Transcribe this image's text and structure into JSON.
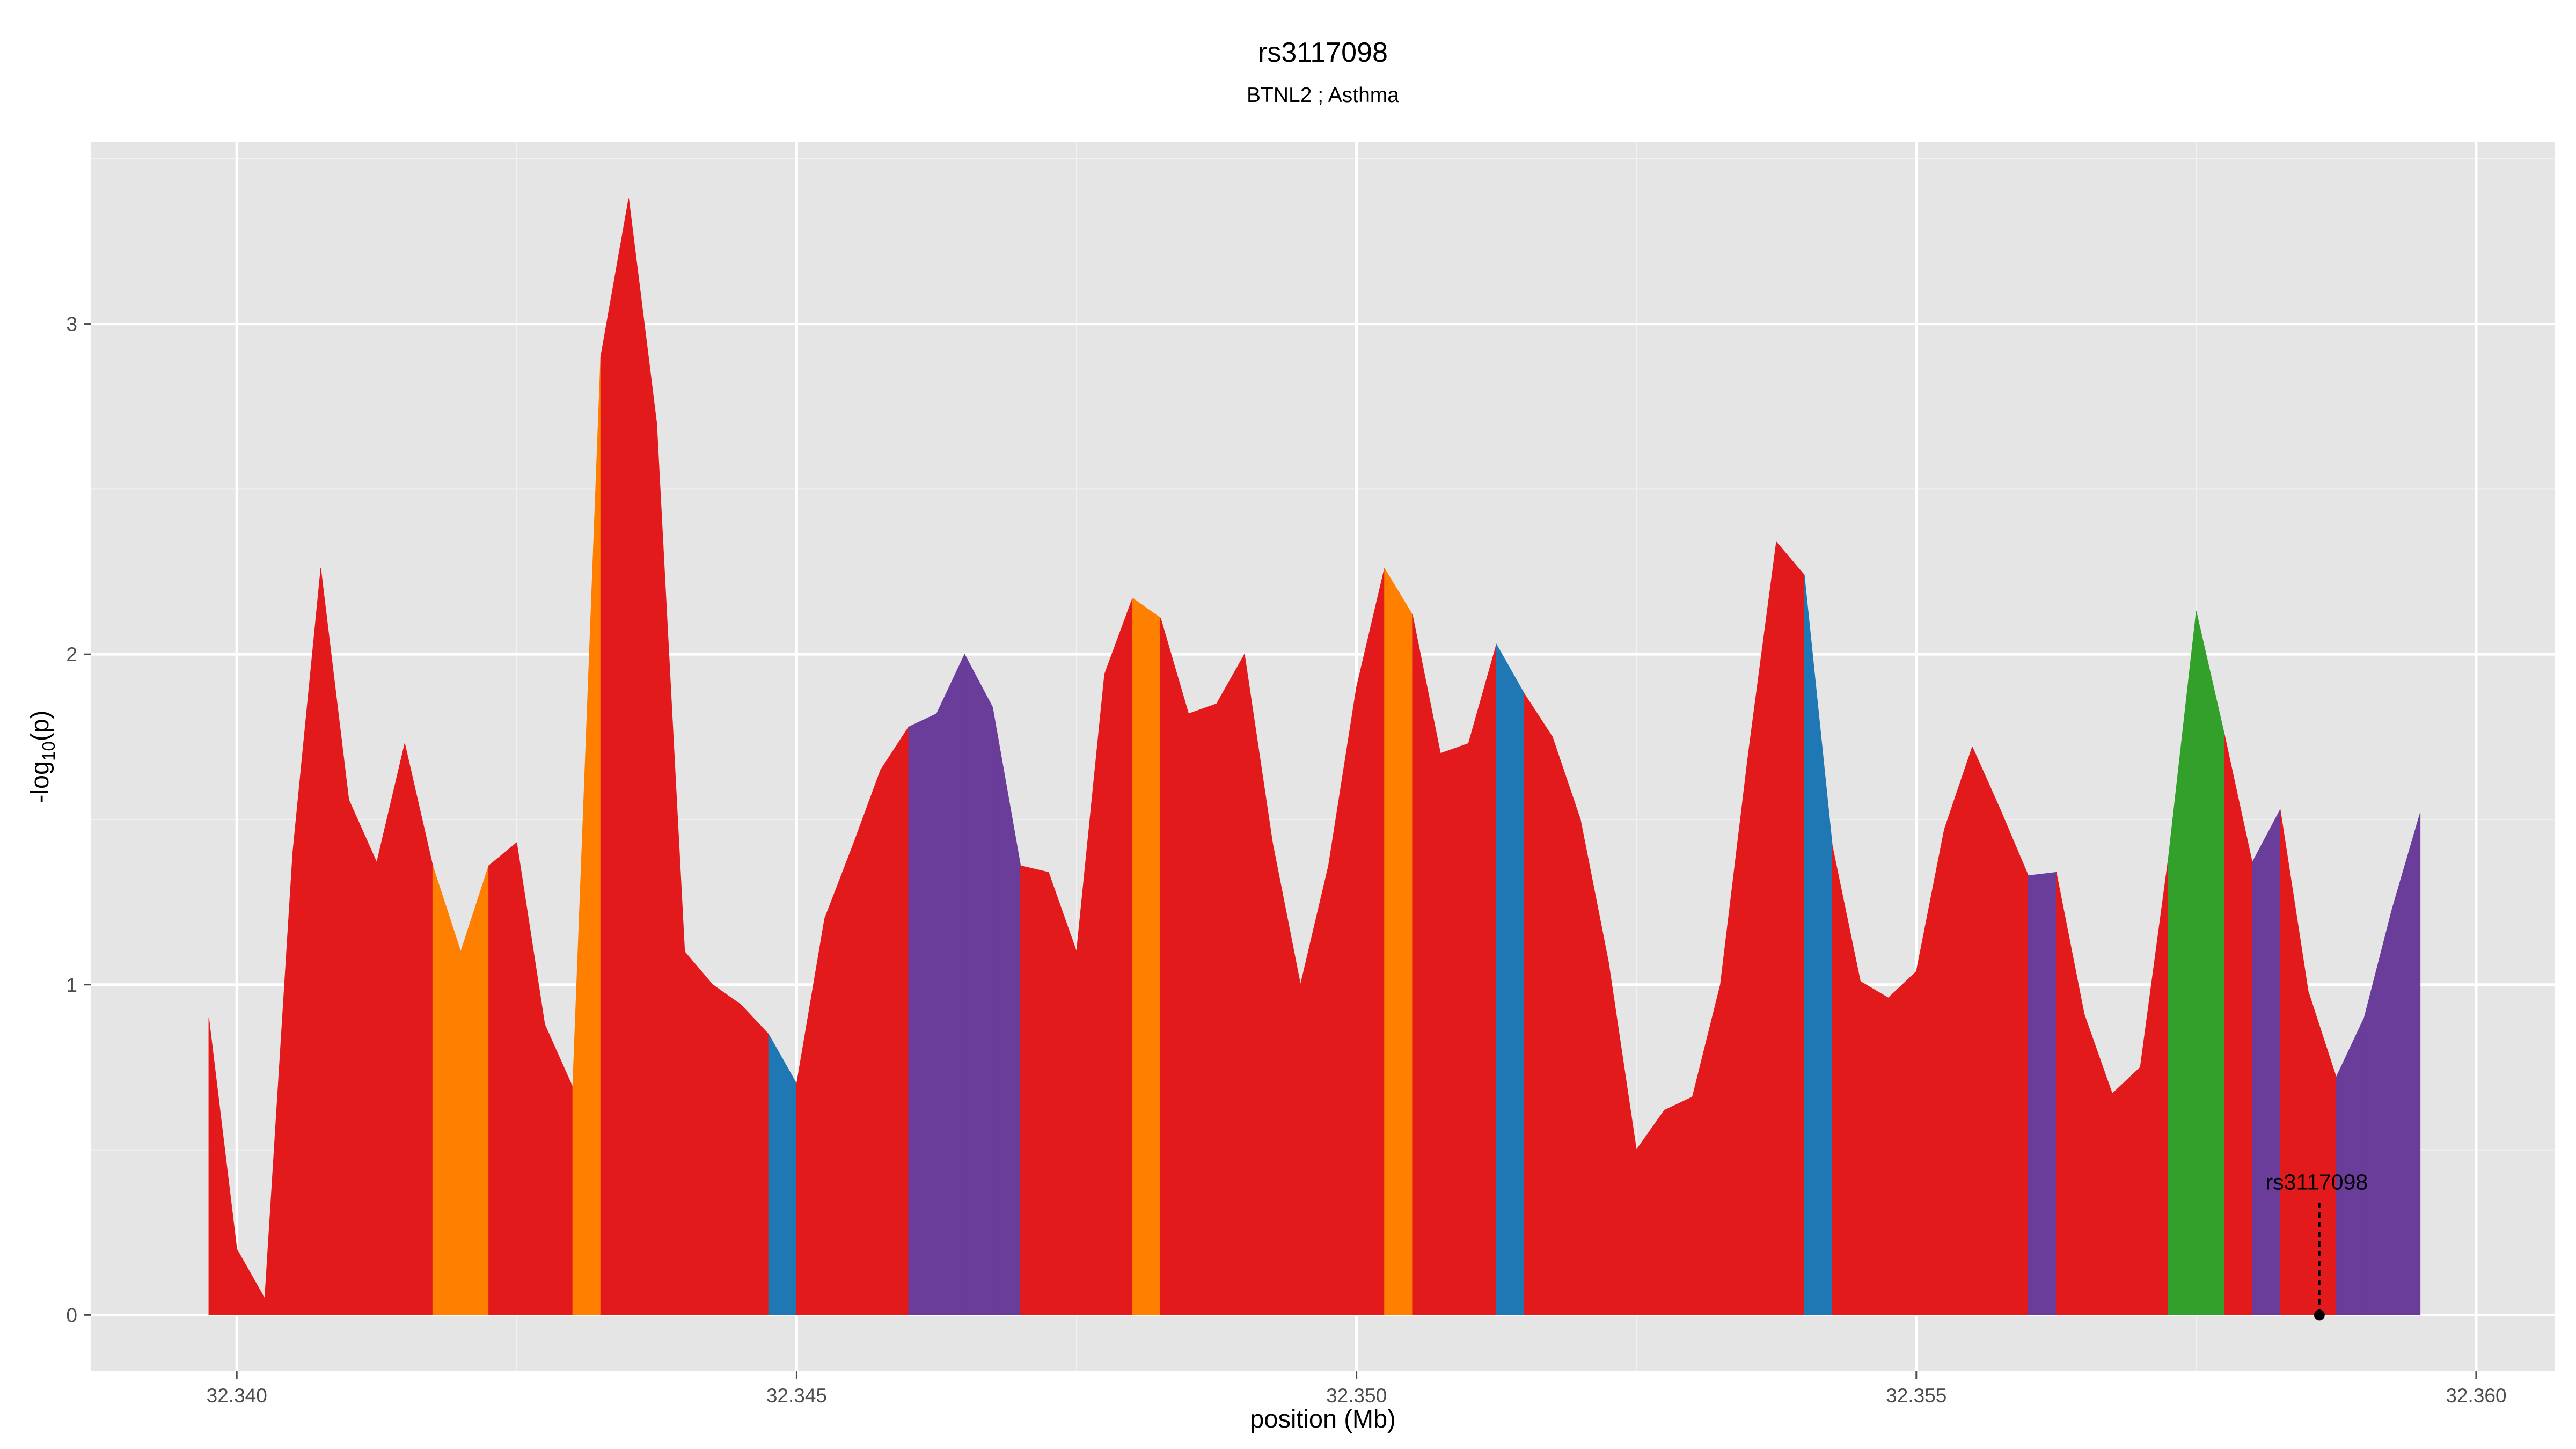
{
  "chart_data": {
    "type": "area",
    "title": "rs3117098",
    "subtitle": "BTNL2 ; Asthma",
    "xlabel": "position (Mb)",
    "ylabel_prefix": "-log",
    "ylabel_sub": "10",
    "ylabel_suffix": "(p)",
    "xlim": [
      32.3387,
      32.3607
    ],
    "ylim": [
      -0.17,
      3.55
    ],
    "x_ticks": [
      32.34,
      32.345,
      32.35,
      32.355,
      32.36
    ],
    "x_tick_labels": [
      "32.340",
      "32.345",
      "32.350",
      "32.355",
      "32.360"
    ],
    "y_ticks": [
      0,
      1,
      2,
      3
    ],
    "y_tick_labels": [
      "0",
      "1",
      "2",
      "3"
    ],
    "grid": true,
    "background": "#e5e5e5",
    "colors": {
      "red": "#e31a1c",
      "orange": "#ff7f00",
      "blue": "#1f78b4",
      "purple": "#6a3d9a",
      "green": "#33a02c"
    },
    "points": [
      {
        "x": 32.33975,
        "y": 0.9,
        "c": "red"
      },
      {
        "x": 32.34,
        "y": 0.2,
        "c": "red"
      },
      {
        "x": 32.34025,
        "y": 0.05,
        "c": "red"
      },
      {
        "x": 32.3405,
        "y": 1.4,
        "c": "red"
      },
      {
        "x": 32.34075,
        "y": 2.26,
        "c": "red"
      },
      {
        "x": 32.341,
        "y": 1.56,
        "c": "red"
      },
      {
        "x": 32.34125,
        "y": 1.37,
        "c": "red"
      },
      {
        "x": 32.3415,
        "y": 1.73,
        "c": "red"
      },
      {
        "x": 32.34175,
        "y": 1.36,
        "c": "orange"
      },
      {
        "x": 32.342,
        "y": 1.1,
        "c": "orange"
      },
      {
        "x": 32.34225,
        "y": 1.36,
        "c": "red"
      },
      {
        "x": 32.3425,
        "y": 1.43,
        "c": "red"
      },
      {
        "x": 32.34275,
        "y": 0.88,
        "c": "red"
      },
      {
        "x": 32.343,
        "y": 0.69,
        "c": "orange"
      },
      {
        "x": 32.34325,
        "y": 2.9,
        "c": "red"
      },
      {
        "x": 32.3435,
        "y": 3.38,
        "c": "red"
      },
      {
        "x": 32.34375,
        "y": 2.7,
        "c": "red"
      },
      {
        "x": 32.344,
        "y": 1.1,
        "c": "red"
      },
      {
        "x": 32.34425,
        "y": 1.0,
        "c": "red"
      },
      {
        "x": 32.3445,
        "y": 0.94,
        "c": "red"
      },
      {
        "x": 32.34475,
        "y": 0.85,
        "c": "blue"
      },
      {
        "x": 32.345,
        "y": 0.7,
        "c": "red"
      },
      {
        "x": 32.34525,
        "y": 1.2,
        "c": "red"
      },
      {
        "x": 32.3455,
        "y": 1.42,
        "c": "red"
      },
      {
        "x": 32.34575,
        "y": 1.65,
        "c": "red"
      },
      {
        "x": 32.346,
        "y": 1.78,
        "c": "purple"
      },
      {
        "x": 32.34625,
        "y": 1.82,
        "c": "purple"
      },
      {
        "x": 32.3465,
        "y": 2.0,
        "c": "purple"
      },
      {
        "x": 32.34675,
        "y": 1.84,
        "c": "purple"
      },
      {
        "x": 32.347,
        "y": 1.36,
        "c": "red"
      },
      {
        "x": 32.34725,
        "y": 1.34,
        "c": "red"
      },
      {
        "x": 32.3475,
        "y": 1.1,
        "c": "red"
      },
      {
        "x": 32.34775,
        "y": 1.94,
        "c": "red"
      },
      {
        "x": 32.348,
        "y": 2.17,
        "c": "orange"
      },
      {
        "x": 32.34825,
        "y": 2.11,
        "c": "red"
      },
      {
        "x": 32.3485,
        "y": 1.82,
        "c": "red"
      },
      {
        "x": 32.34875,
        "y": 1.85,
        "c": "red"
      },
      {
        "x": 32.349,
        "y": 2.0,
        "c": "red"
      },
      {
        "x": 32.34925,
        "y": 1.43,
        "c": "red"
      },
      {
        "x": 32.3495,
        "y": 1.0,
        "c": "red"
      },
      {
        "x": 32.34975,
        "y": 1.36,
        "c": "red"
      },
      {
        "x": 32.35,
        "y": 1.9,
        "c": "red"
      },
      {
        "x": 32.35025,
        "y": 2.26,
        "c": "orange"
      },
      {
        "x": 32.3505,
        "y": 2.12,
        "c": "red"
      },
      {
        "x": 32.35075,
        "y": 1.7,
        "c": "red"
      },
      {
        "x": 32.351,
        "y": 1.73,
        "c": "red"
      },
      {
        "x": 32.35125,
        "y": 2.03,
        "c": "blue"
      },
      {
        "x": 32.3515,
        "y": 1.88,
        "c": "red"
      },
      {
        "x": 32.35175,
        "y": 1.75,
        "c": "red"
      },
      {
        "x": 32.352,
        "y": 1.5,
        "c": "red"
      },
      {
        "x": 32.35225,
        "y": 1.07,
        "c": "red"
      },
      {
        "x": 32.3525,
        "y": 0.5,
        "c": "red"
      },
      {
        "x": 32.35275,
        "y": 0.62,
        "c": "red"
      },
      {
        "x": 32.353,
        "y": 0.66,
        "c": "red"
      },
      {
        "x": 32.35325,
        "y": 1.0,
        "c": "red"
      },
      {
        "x": 32.3535,
        "y": 1.7,
        "c": "red"
      },
      {
        "x": 32.35375,
        "y": 2.34,
        "c": "red"
      },
      {
        "x": 32.354,
        "y": 2.24,
        "c": "blue"
      },
      {
        "x": 32.35425,
        "y": 1.42,
        "c": "red"
      },
      {
        "x": 32.3545,
        "y": 1.01,
        "c": "red"
      },
      {
        "x": 32.35475,
        "y": 0.96,
        "c": "red"
      },
      {
        "x": 32.355,
        "y": 1.04,
        "c": "red"
      },
      {
        "x": 32.35525,
        "y": 1.47,
        "c": "red"
      },
      {
        "x": 32.3555,
        "y": 1.72,
        "c": "red"
      },
      {
        "x": 32.35575,
        "y": 1.53,
        "c": "red"
      },
      {
        "x": 32.356,
        "y": 1.33,
        "c": "purple"
      },
      {
        "x": 32.35625,
        "y": 1.34,
        "c": "red"
      },
      {
        "x": 32.3565,
        "y": 0.91,
        "c": "red"
      },
      {
        "x": 32.35675,
        "y": 0.67,
        "c": "red"
      },
      {
        "x": 32.357,
        "y": 0.75,
        "c": "red"
      },
      {
        "x": 32.35725,
        "y": 1.38,
        "c": "green"
      },
      {
        "x": 32.3575,
        "y": 2.13,
        "c": "green"
      },
      {
        "x": 32.35775,
        "y": 1.76,
        "c": "red"
      },
      {
        "x": 32.358,
        "y": 1.37,
        "c": "purple"
      },
      {
        "x": 32.35825,
        "y": 1.53,
        "c": "red"
      },
      {
        "x": 32.3585,
        "y": 0.98,
        "c": "red"
      },
      {
        "x": 32.35875,
        "y": 0.72,
        "c": "purple"
      },
      {
        "x": 32.359,
        "y": 0.9,
        "c": "purple"
      },
      {
        "x": 32.35925,
        "y": 1.23,
        "c": "purple"
      },
      {
        "x": 32.3595,
        "y": 1.52,
        "c": "purple"
      }
    ],
    "annotation": {
      "label": "rs3117098",
      "x": 32.3586,
      "y_point": 0.0,
      "y_line_top": 0.34,
      "y_label": 0.38
    }
  }
}
